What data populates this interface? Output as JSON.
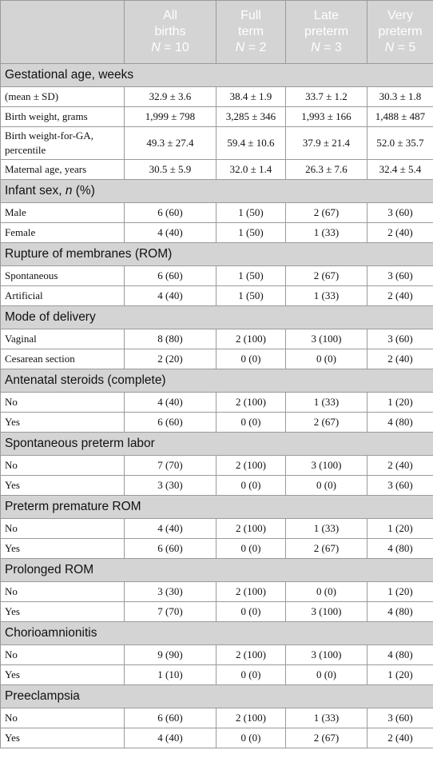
{
  "columns": [
    {
      "line1": "All",
      "line2": "births",
      "n_label": "N",
      "n_value": " = 10"
    },
    {
      "line1": "Full",
      "line2": "term",
      "n_label": "N",
      "n_value": " = 2"
    },
    {
      "line1": "Late",
      "line2": "preterm",
      "n_label": "N",
      "n_value": " = 3"
    },
    {
      "line1": "Very",
      "line2": "preterm",
      "n_label": "N",
      "n_value": " = 5"
    }
  ],
  "sections": [
    {
      "title": "Gestational age, weeks",
      "title_italic": "",
      "title_after": "",
      "rows": [
        {
          "label": "(mean ± SD)",
          "values": [
            "32.9 ± 3.6",
            "38.4 ± 1.9",
            "33.7 ± 1.2",
            "30.3 ± 1.8"
          ]
        },
        {
          "label": "Birth weight, grams",
          "values": [
            "1,999 ± 798",
            "3,285 ± 346",
            "1,993 ± 166",
            "1,488 ± 487"
          ]
        },
        {
          "label": "Birth weight-for-GA, percentile",
          "values": [
            "49.3 ± 27.4",
            "59.4 ± 10.6",
            "37.9 ± 21.4",
            "52.0 ± 35.7"
          ]
        },
        {
          "label": "Maternal age, years",
          "values": [
            "30.5 ± 5.9",
            "32.0 ± 1.4",
            "26.3 ± 7.6",
            "32.4 ± 5.4"
          ]
        }
      ]
    },
    {
      "title": "Infant sex, ",
      "title_italic": "n",
      "title_after": " (%)",
      "rows": [
        {
          "label": "Male",
          "values": [
            "6 (60)",
            "1 (50)",
            "2 (67)",
            "3 (60)"
          ]
        },
        {
          "label": "Female",
          "values": [
            "4 (40)",
            "1 (50)",
            "1 (33)",
            "2 (40)"
          ]
        }
      ]
    },
    {
      "title": "Rupture of membranes (ROM)",
      "title_italic": "",
      "title_after": "",
      "rows": [
        {
          "label": "Spontaneous",
          "values": [
            "6 (60)",
            "1 (50)",
            "2 (67)",
            "3 (60)"
          ]
        },
        {
          "label": "Artificial",
          "values": [
            "4 (40)",
            "1 (50)",
            "1 (33)",
            "2 (40)"
          ]
        }
      ]
    },
    {
      "title": "Mode of delivery",
      "title_italic": "",
      "title_after": "",
      "rows": [
        {
          "label": "Vaginal",
          "values": [
            "8 (80)",
            "2 (100)",
            "3 (100)",
            "3 (60)"
          ]
        },
        {
          "label": "Cesarean section",
          "values": [
            "2 (20)",
            "0 (0)",
            "0 (0)",
            "2 (40)"
          ]
        }
      ]
    },
    {
      "title": "Antenatal steroids (complete)",
      "title_italic": "",
      "title_after": "",
      "rows": [
        {
          "label": "No",
          "values": [
            "4 (40)",
            "2 (100)",
            "1 (33)",
            "1 (20)"
          ]
        },
        {
          "label": "Yes",
          "values": [
            "6 (60)",
            "0 (0)",
            "2 (67)",
            "4 (80)"
          ]
        }
      ]
    },
    {
      "title": "Spontaneous preterm labor",
      "title_italic": "",
      "title_after": "",
      "rows": [
        {
          "label": "No",
          "values": [
            "7 (70)",
            "2 (100)",
            "3 (100)",
            "2 (40)"
          ]
        },
        {
          "label": "Yes",
          "values": [
            "3 (30)",
            "0 (0)",
            "0 (0)",
            "3 (60)"
          ]
        }
      ]
    },
    {
      "title": "Preterm premature ROM",
      "title_italic": "",
      "title_after": "",
      "rows": [
        {
          "label": "No",
          "values": [
            "4 (40)",
            "2 (100)",
            "1 (33)",
            "1 (20)"
          ]
        },
        {
          "label": "Yes",
          "values": [
            "6 (60)",
            "0 (0)",
            "2 (67)",
            "4 (80)"
          ]
        }
      ]
    },
    {
      "title": "Prolonged ROM",
      "title_italic": "",
      "title_after": "",
      "rows": [
        {
          "label": "No",
          "values": [
            "3 (30)",
            "2 (100)",
            "0 (0)",
            "1 (20)"
          ]
        },
        {
          "label": "Yes",
          "values": [
            "7 (70)",
            "0 (0)",
            "3 (100)",
            "4 (80)"
          ]
        }
      ]
    },
    {
      "title": "Chorioamnionitis",
      "title_italic": "",
      "title_after": "",
      "rows": [
        {
          "label": "No",
          "values": [
            "9 (90)",
            "2 (100)",
            "3 (100)",
            "4 (80)"
          ]
        },
        {
          "label": "Yes",
          "values": [
            "1 (10)",
            "0 (0)",
            "0 (0)",
            "1 (20)"
          ]
        }
      ]
    },
    {
      "title": "Preeclampsia",
      "title_italic": "",
      "title_after": "",
      "rows": [
        {
          "label": "No",
          "values": [
            "6 (60)",
            "2 (100)",
            "1 (33)",
            "3 (60)"
          ]
        },
        {
          "label": "Yes",
          "values": [
            "4 (40)",
            "0 (0)",
            "2 (67)",
            "2 (40)"
          ]
        }
      ]
    }
  ]
}
